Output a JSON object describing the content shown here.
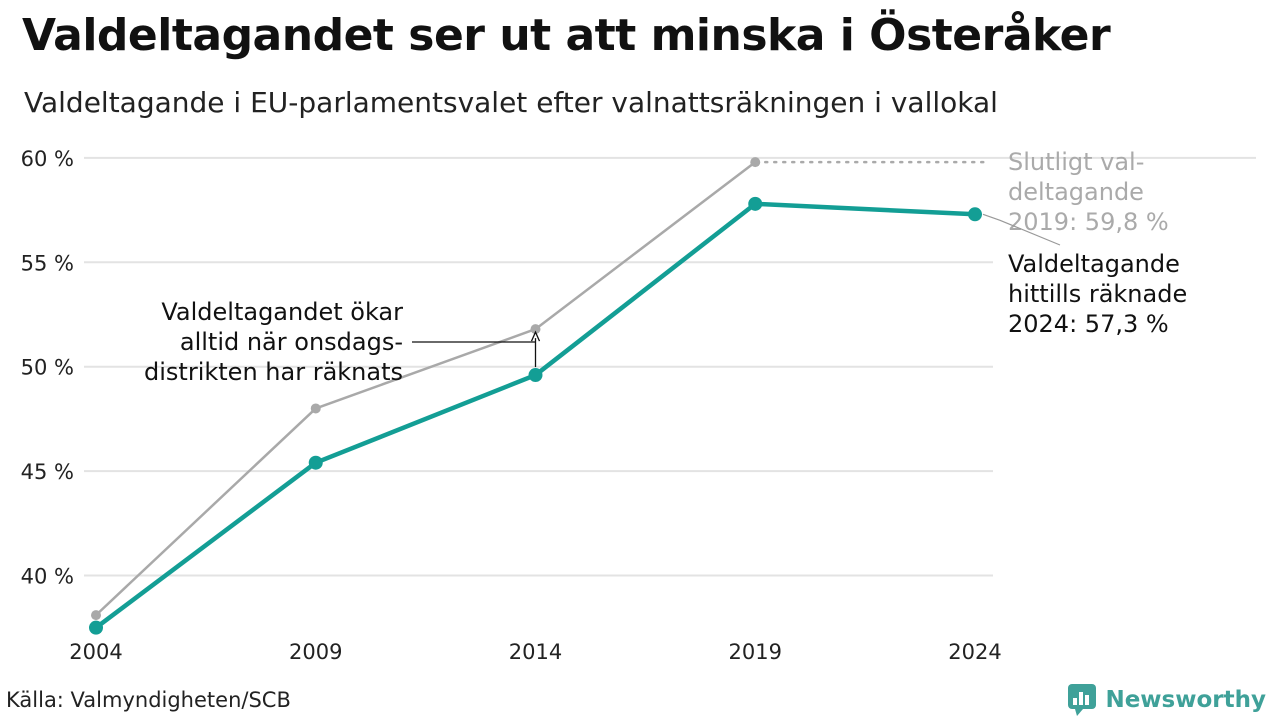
{
  "title": "Valdeltagandet ser ut att minska i Österåker",
  "subtitle": "Valdeltagande i EU-parlamentsvalet efter valnattsräkningen i vallokal",
  "source": "Källa: Valmyndigheten/SCB",
  "brand": {
    "name": "Newsworthy",
    "color": "#3fa199",
    "icon": "bar-chart-logo-icon"
  },
  "chart_data": {
    "type": "line",
    "x": [
      "2004",
      "2009",
      "2014",
      "2019",
      "2024"
    ],
    "series": [
      {
        "key": "final",
        "color": "#a9a9a9",
        "values": [
          38.1,
          48.0,
          51.8,
          59.8,
          null
        ]
      },
      {
        "key": "election_night",
        "color": "#139e95",
        "values": [
          37.5,
          45.4,
          49.6,
          57.8,
          57.3
        ]
      }
    ],
    "y_ticks": [
      {
        "value": 40,
        "label": "40 %"
      },
      {
        "value": 45,
        "label": "45 %"
      },
      {
        "value": 50,
        "label": "50 %"
      },
      {
        "value": 55,
        "label": "55 %"
      },
      {
        "value": 60,
        "label": "60 %"
      }
    ],
    "ylim": [
      35.95,
      62.2
    ],
    "grid": true,
    "annotations": {
      "final_2019": [
        "Slutligt val-",
        "deltagande",
        "2019: 59,8 %"
      ],
      "counted_2024": [
        "Valdeltagande",
        "hittills räknade",
        "2024: 57,3 %"
      ],
      "wednesday": [
        "Valdeltagandet ökar",
        "alltid när onsdags-",
        "distrikten har räknats"
      ]
    }
  }
}
